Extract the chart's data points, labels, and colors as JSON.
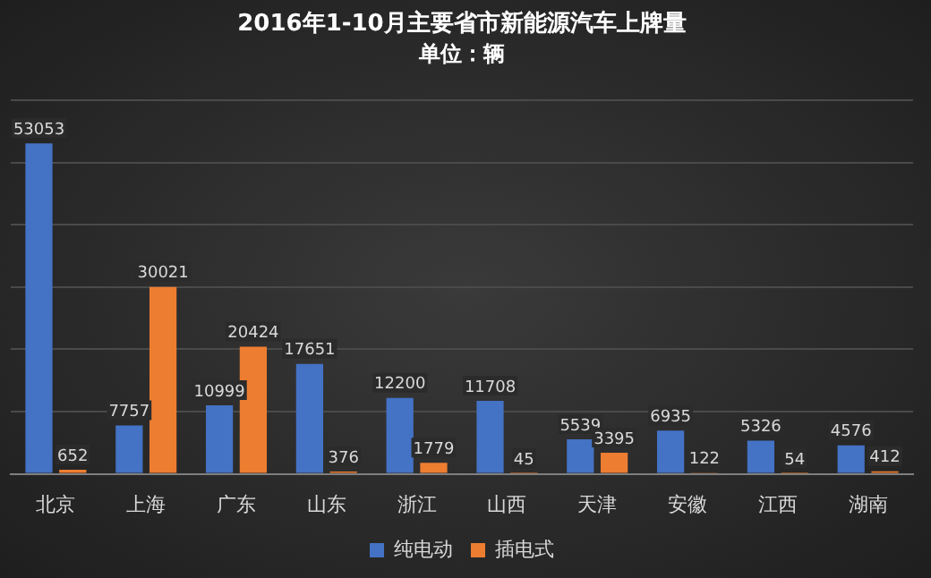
{
  "chart_data": {
    "type": "bar",
    "title": "2016年1-10月主要省市新能源汽车上牌量",
    "subtitle": "单位：辆",
    "categories": [
      "北京",
      "上海",
      "广东",
      "山东",
      "浙江",
      "山西",
      "天津",
      "安徽",
      "江西",
      "湖南"
    ],
    "series": [
      {
        "name": "纯电动",
        "color": "#4472c4",
        "values": [
          53053,
          7757,
          10999,
          17651,
          12200,
          11708,
          5539,
          6935,
          5326,
          4576
        ]
      },
      {
        "name": "插电式",
        "color": "#ed7d31",
        "values": [
          652,
          30021,
          20424,
          376,
          1779,
          45,
          3395,
          122,
          54,
          412
        ]
      }
    ],
    "ylim": [
      0,
      60000
    ],
    "yticks": [
      {
        "value": 0,
        "label": null
      },
      {
        "value": 10000,
        "label": null
      },
      {
        "value": 20000,
        "label": null
      },
      {
        "value": 30000,
        "label": null
      },
      {
        "value": 40000,
        "label": null
      },
      {
        "value": 50000,
        "label": null
      },
      {
        "value": 60000,
        "label": null
      }
    ],
    "tick_labels": "x",
    "grid": "y",
    "legend": "bottom",
    "data_labels": true
  }
}
